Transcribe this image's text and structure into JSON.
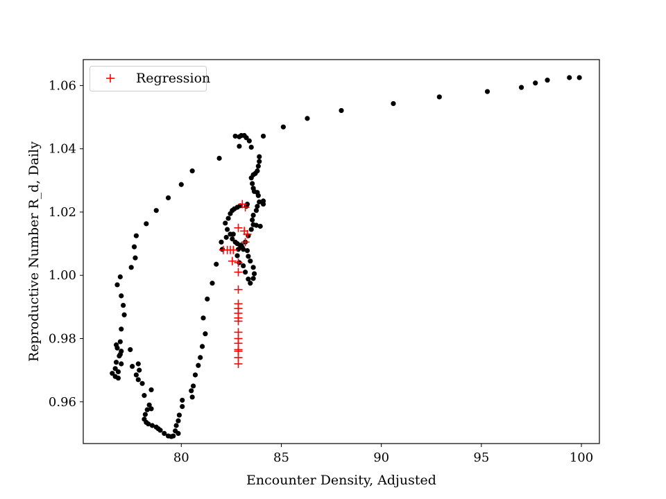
{
  "chart_data": {
    "type": "scatter",
    "title": "",
    "xlabel": "Encounter Density, Adjusted",
    "ylabel": "Reproductive Number R_d, Daily",
    "xlim": [
      75.1,
      100.9
    ],
    "ylim": [
      0.9468,
      1.0682
    ],
    "xticks": [
      80,
      85,
      90,
      95,
      100
    ],
    "yticks": [
      0.96,
      0.98,
      1.0,
      1.02,
      1.04,
      1.06
    ],
    "ytick_labels": [
      "0.96",
      "0.98",
      "1.00",
      "1.02",
      "1.04",
      "1.06"
    ],
    "grid": false,
    "legend": {
      "position": "top-left",
      "entries": [
        {
          "label": "Regression",
          "series": "regression"
        }
      ]
    },
    "series": [
      {
        "name": "observed",
        "marker": "dot",
        "color": "#000000",
        "in_legend": false,
        "points": [
          [
            99.9,
            1.0625
          ],
          [
            99.4,
            1.0625
          ],
          [
            98.3,
            1.0617
          ],
          [
            97.7,
            1.0608
          ],
          [
            97.0,
            1.0594
          ],
          [
            95.3,
            1.0581
          ],
          [
            92.9,
            1.0564
          ],
          [
            90.6,
            1.0543
          ],
          [
            88.0,
            1.0521
          ],
          [
            86.3,
            1.0496
          ],
          [
            85.1,
            1.0469
          ],
          [
            84.1,
            1.044
          ],
          [
            82.7,
            1.044
          ],
          [
            82.9,
            1.0438
          ],
          [
            83.0,
            1.0442
          ],
          [
            83.15,
            1.0442
          ],
          [
            83.25,
            1.0435
          ],
          [
            83.4,
            1.0425
          ],
          [
            83.5,
            1.0405
          ],
          [
            82.9,
            1.0408
          ],
          [
            83.9,
            1.0375
          ],
          [
            83.9,
            1.036
          ],
          [
            83.85,
            1.0345
          ],
          [
            83.8,
            1.033
          ],
          [
            83.7,
            1.0322
          ],
          [
            83.6,
            1.0318
          ],
          [
            83.5,
            1.0308
          ],
          [
            83.55,
            1.029
          ],
          [
            83.6,
            1.0275
          ],
          [
            83.65,
            1.0265
          ],
          [
            83.8,
            1.0262
          ],
          [
            83.85,
            1.0252
          ],
          [
            84.1,
            1.0235
          ],
          [
            84.1,
            1.0225
          ],
          [
            83.9,
            1.0232
          ],
          [
            83.8,
            1.0218
          ],
          [
            83.75,
            1.0205
          ],
          [
            83.6,
            1.019
          ],
          [
            83.55,
            1.0175
          ],
          [
            83.6,
            1.016
          ],
          [
            83.75,
            1.0158
          ],
          [
            83.95,
            1.0155
          ],
          [
            83.5,
            1.0145
          ],
          [
            83.35,
            1.0125
          ],
          [
            83.2,
            1.0105
          ],
          [
            83.0,
            1.0095
          ],
          [
            82.85,
            1.0082
          ],
          [
            82.8,
            1.0062
          ],
          [
            82.9,
            1.004
          ],
          [
            83.1,
            1.003
          ],
          [
            83.2,
            1.001
          ],
          [
            83.35,
            0.9988
          ],
          [
            83.45,
            0.9975
          ],
          [
            83.6,
            0.999
          ],
          [
            83.65,
            1.0005
          ],
          [
            83.6,
            1.0025
          ],
          [
            83.45,
            1.0045
          ],
          [
            83.35,
            1.006
          ],
          [
            83.3,
            1.0078
          ],
          [
            83.1,
            1.0082
          ],
          [
            83.05,
            1.0088
          ],
          [
            82.95,
            1.0095
          ],
          [
            82.8,
            1.01
          ],
          [
            82.7,
            1.0105
          ],
          [
            82.55,
            1.0115
          ],
          [
            82.45,
            1.013
          ],
          [
            82.3,
            1.0145
          ],
          [
            82.2,
            1.0165
          ],
          [
            82.35,
            1.018
          ],
          [
            82.45,
            1.0195
          ],
          [
            82.55,
            1.0205
          ],
          [
            82.65,
            1.021
          ],
          [
            82.8,
            1.0215
          ],
          [
            82.95,
            1.022
          ],
          [
            83.25,
            1.0218
          ],
          [
            83.3,
            1.0225
          ],
          [
            82.6,
            1.013
          ],
          [
            82.25,
            1.012
          ],
          [
            82.0,
            1.0105
          ],
          [
            82.05,
            1.0082
          ],
          [
            81.75,
            1.0035
          ],
          [
            81.55,
            0.9975
          ],
          [
            81.3,
            0.9925
          ],
          [
            81.1,
            0.9865
          ],
          [
            81.2,
            0.9815
          ],
          [
            81.05,
            0.9775
          ],
          [
            80.95,
            0.974
          ],
          [
            80.85,
            0.9715
          ],
          [
            80.7,
            0.9685
          ],
          [
            80.6,
            0.965
          ],
          [
            80.5,
            0.9635
          ],
          [
            80.55,
            0.9615
          ],
          [
            80.05,
            0.9605
          ],
          [
            80.05,
            0.9585
          ],
          [
            79.9,
            0.9558
          ],
          [
            79.85,
            0.954
          ],
          [
            79.75,
            0.9525
          ],
          [
            79.7,
            0.9508
          ],
          [
            79.85,
            0.95
          ],
          [
            79.6,
            0.9492
          ],
          [
            79.5,
            0.949
          ],
          [
            79.35,
            0.9492
          ],
          [
            79.15,
            0.95
          ],
          [
            78.95,
            0.951
          ],
          [
            78.85,
            0.9515
          ],
          [
            78.75,
            0.952
          ],
          [
            78.55,
            0.9525
          ],
          [
            78.35,
            0.953
          ],
          [
            78.25,
            0.9535
          ],
          [
            78.15,
            0.9545
          ],
          [
            78.2,
            0.956
          ],
          [
            78.3,
            0.9575
          ],
          [
            78.5,
            0.9578
          ],
          [
            78.4,
            0.959
          ],
          [
            78.15,
            0.962
          ],
          [
            78.5,
            0.9638
          ],
          [
            78.05,
            0.9658
          ],
          [
            77.85,
            0.967
          ],
          [
            77.75,
            0.9685
          ],
          [
            77.9,
            0.97
          ],
          [
            77.55,
            0.9712
          ],
          [
            77.85,
            0.972
          ],
          [
            77.45,
            0.9765
          ],
          [
            77.0,
            0.976
          ],
          [
            76.9,
            0.9745
          ],
          [
            76.75,
            0.9725
          ],
          [
            77.0,
            0.972
          ],
          [
            76.7,
            0.9705
          ],
          [
            76.85,
            0.9695
          ],
          [
            76.55,
            0.969
          ],
          [
            76.7,
            0.968
          ],
          [
            76.85,
            0.9675
          ],
          [
            76.95,
            0.979
          ],
          [
            76.75,
            0.978
          ],
          [
            76.8,
            0.977
          ],
          [
            76.95,
            0.975
          ],
          [
            77.0,
            0.983
          ],
          [
            77.15,
            0.9875
          ],
          [
            77.1,
            0.9905
          ],
          [
            77.0,
            0.9935
          ],
          [
            76.95,
            0.9995
          ],
          [
            76.8,
            0.997
          ],
          [
            77.5,
            1.0025
          ],
          [
            77.7,
            1.0055
          ],
          [
            77.65,
            1.009
          ],
          [
            77.75,
            1.0125
          ],
          [
            78.25,
            1.0163
          ],
          [
            78.75,
            1.0205
          ],
          [
            79.35,
            1.0245
          ],
          [
            80.0,
            1.0287
          ],
          [
            80.55,
            1.033
          ],
          [
            81.9,
            1.037
          ]
        ]
      },
      {
        "name": "regression",
        "label": "Regression",
        "marker": "plus",
        "color": "#ff0000",
        "in_legend": true,
        "points": [
          [
            83.05,
            1.0225
          ],
          [
            83.2,
            1.0215
          ],
          [
            82.85,
            1.015
          ],
          [
            83.15,
            1.014
          ],
          [
            83.3,
            1.013
          ],
          [
            83.2,
            1.0105
          ],
          [
            82.1,
            1.008
          ],
          [
            82.3,
            1.008
          ],
          [
            82.45,
            1.008
          ],
          [
            82.6,
            1.008
          ],
          [
            82.55,
            1.0045
          ],
          [
            82.85,
            1.004
          ],
          [
            82.85,
            1.001
          ],
          [
            82.85,
            0.9955
          ],
          [
            82.85,
            0.991
          ],
          [
            82.85,
            0.9895
          ],
          [
            82.85,
            0.988
          ],
          [
            82.85,
            0.9865
          ],
          [
            82.85,
            0.9855
          ],
          [
            82.85,
            0.982
          ],
          [
            82.85,
            0.98
          ],
          [
            82.85,
            0.9785
          ],
          [
            82.85,
            0.9765
          ],
          [
            82.85,
            0.976
          ],
          [
            82.85,
            0.974
          ],
          [
            82.85,
            0.972
          ]
        ]
      }
    ]
  }
}
